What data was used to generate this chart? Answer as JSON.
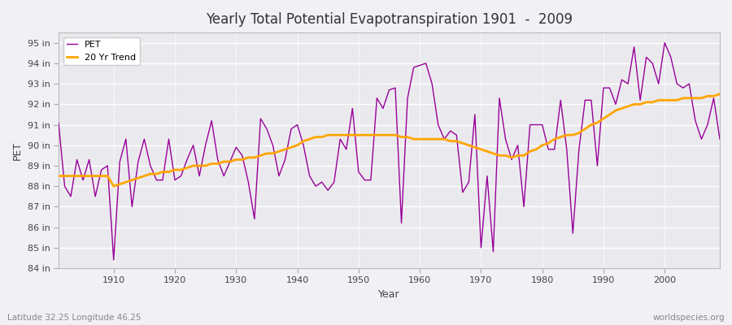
{
  "title": "Yearly Total Potential Evapotranspiration 1901  -  2009",
  "xlabel": "Year",
  "ylabel": "PET",
  "subtitle_left": "Latitude 32.25 Longitude 46.25",
  "subtitle_right": "worldspecies.org",
  "ylim": [
    84,
    95.5
  ],
  "ytick_labels": [
    "84 in",
    "85 in",
    "86 in",
    "87 in",
    "88 in",
    "89 in",
    "90 in",
    "91 in",
    "92 in",
    "93 in",
    "94 in",
    "95 in"
  ],
  "ytick_values": [
    84,
    85,
    86,
    87,
    88,
    89,
    90,
    91,
    92,
    93,
    94,
    95
  ],
  "pet_color": "#990099",
  "trend_color": "#ffa500",
  "bg_color": "#f0f0f5",
  "plot_bg_color": "#eaeaee",
  "years": [
    1901,
    1902,
    1903,
    1904,
    1905,
    1906,
    1907,
    1908,
    1909,
    1910,
    1911,
    1912,
    1913,
    1914,
    1915,
    1916,
    1917,
    1918,
    1919,
    1920,
    1921,
    1922,
    1923,
    1924,
    1925,
    1926,
    1927,
    1928,
    1929,
    1930,
    1931,
    1932,
    1933,
    1934,
    1935,
    1936,
    1937,
    1938,
    1939,
    1940,
    1941,
    1942,
    1943,
    1944,
    1945,
    1946,
    1947,
    1948,
    1949,
    1950,
    1951,
    1952,
    1953,
    1954,
    1955,
    1956,
    1957,
    1958,
    1959,
    1960,
    1961,
    1962,
    1963,
    1964,
    1965,
    1966,
    1967,
    1968,
    1969,
    1970,
    1971,
    1972,
    1973,
    1974,
    1975,
    1976,
    1977,
    1978,
    1979,
    1980,
    1981,
    1982,
    1983,
    1984,
    1985,
    1986,
    1987,
    1988,
    1989,
    1990,
    1991,
    1992,
    1993,
    1994,
    1995,
    1996,
    1997,
    1998,
    1999,
    2000,
    2001,
    2002,
    2003,
    2004,
    2005,
    2006,
    2007,
    2008,
    2009
  ],
  "pet_values": [
    91.1,
    88.0,
    87.5,
    89.3,
    88.3,
    89.3,
    87.5,
    88.8,
    89.0,
    84.4,
    89.2,
    90.3,
    87.0,
    89.2,
    90.3,
    89.0,
    88.3,
    88.3,
    90.3,
    88.3,
    88.5,
    89.3,
    90.0,
    88.5,
    90.0,
    91.2,
    89.3,
    88.5,
    89.2,
    89.9,
    89.5,
    88.2,
    86.4,
    91.3,
    90.8,
    90.0,
    88.5,
    89.3,
    90.8,
    91.0,
    90.0,
    88.5,
    88.0,
    88.2,
    87.8,
    88.2,
    90.3,
    89.8,
    91.8,
    88.7,
    88.3,
    88.3,
    92.3,
    91.8,
    92.7,
    92.8,
    86.2,
    92.3,
    93.8,
    93.9,
    94.0,
    93.0,
    91.0,
    90.3,
    90.7,
    90.5,
    87.7,
    88.2,
    91.5,
    85.0,
    88.5,
    84.8,
    92.3,
    90.3,
    89.3,
    90.0,
    87.0,
    91.0,
    91.0,
    91.0,
    89.8,
    89.8,
    92.2,
    89.8,
    85.7,
    89.8,
    92.2,
    92.2,
    89.0,
    92.8,
    92.8,
    92.0,
    93.2,
    93.0,
    94.8,
    92.2,
    94.3,
    94.0,
    93.0,
    95.0,
    94.3,
    93.0,
    92.8,
    93.0,
    91.2,
    90.3,
    91.0,
    92.3,
    90.3
  ],
  "trend_years": [
    1901,
    1902,
    1903,
    1904,
    1905,
    1906,
    1907,
    1908,
    1909,
    1910,
    1911,
    1912,
    1913,
    1914,
    1915,
    1916,
    1917,
    1918,
    1919,
    1920,
    1921,
    1922,
    1923,
    1924,
    1925,
    1926,
    1927,
    1928,
    1929,
    1930,
    1931,
    1932,
    1933,
    1934,
    1935,
    1936,
    1937,
    1938,
    1939,
    1940,
    1941,
    1942,
    1943,
    1944,
    1945,
    1946,
    1947,
    1948,
    1949,
    1950,
    1951,
    1952,
    1953,
    1954,
    1955,
    1956,
    1957,
    1958,
    1959,
    1960,
    1961,
    1962,
    1963,
    1964,
    1965,
    1966,
    1967,
    1968,
    1969,
    1970,
    1971,
    1972,
    1973,
    1974,
    1975,
    1976,
    1977,
    1978,
    1979,
    1980,
    1981,
    1982,
    1983,
    1984,
    1985,
    1986,
    1987,
    1988,
    1989,
    1990,
    1991,
    1992,
    1993,
    1994,
    1995,
    1996,
    1997,
    1998,
    1999,
    2000,
    2001,
    2002,
    2003,
    2004,
    2005,
    2006,
    2007,
    2008,
    2009
  ],
  "trend_values": [
    88.5,
    88.5,
    88.5,
    88.5,
    88.5,
    88.5,
    88.5,
    88.5,
    88.5,
    88.0,
    88.1,
    88.2,
    88.3,
    88.4,
    88.5,
    88.6,
    88.6,
    88.7,
    88.7,
    88.8,
    88.8,
    88.9,
    89.0,
    89.0,
    89.0,
    89.1,
    89.1,
    89.2,
    89.2,
    89.3,
    89.3,
    89.4,
    89.4,
    89.5,
    89.6,
    89.6,
    89.7,
    89.8,
    89.9,
    90.0,
    90.2,
    90.3,
    90.4,
    90.4,
    90.5,
    90.5,
    90.5,
    90.5,
    90.5,
    90.5,
    90.5,
    90.5,
    90.5,
    90.5,
    90.5,
    90.5,
    90.4,
    90.4,
    90.3,
    90.3,
    90.3,
    90.3,
    90.3,
    90.3,
    90.2,
    90.2,
    90.1,
    90.0,
    89.9,
    89.8,
    89.7,
    89.6,
    89.5,
    89.5,
    89.4,
    89.5,
    89.5,
    89.7,
    89.8,
    90.0,
    90.1,
    90.3,
    90.4,
    90.5,
    90.5,
    90.6,
    90.8,
    91.0,
    91.1,
    91.3,
    91.5,
    91.7,
    91.8,
    91.9,
    92.0,
    92.0,
    92.1,
    92.1,
    92.2,
    92.2,
    92.2,
    92.2,
    92.3,
    92.3,
    92.3,
    92.3,
    92.4,
    92.4,
    92.5
  ]
}
